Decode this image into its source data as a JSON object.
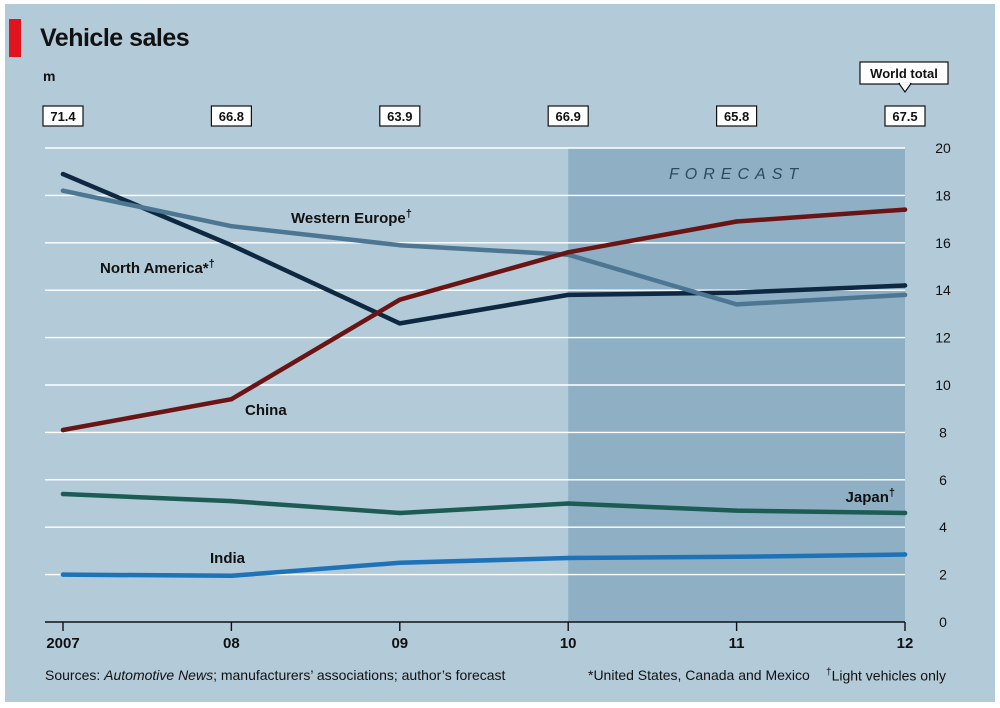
{
  "title": "Vehicle sales",
  "unit": "m",
  "colors": {
    "background": "#b3cad8",
    "forecast_band": "#8fb0c4",
    "north_america": "#0f2842",
    "western_europe": "#4c7692",
    "china": "#6b1414",
    "japan": "#1d5b55",
    "india": "#1e72b8",
    "accent": "#e0141e"
  },
  "forecast_label": "FORECAST",
  "world_total": {
    "label": "World total",
    "values": [
      "71.4",
      "66.8",
      "63.9",
      "66.9",
      "65.8",
      "67.5"
    ]
  },
  "footer": {
    "sources_prefix": "Sources: ",
    "sources_italic": "Automotive News",
    "sources_rest": "; manufacturers’ associations; author’s forecast",
    "note1": "*United States, Canada and Mexico",
    "note2_mark": "†",
    "note2_text": "Light vehicles only"
  },
  "chart_data": {
    "type": "line",
    "title": "Vehicle sales",
    "ylabel": "m",
    "x": [
      2007,
      2008,
      2009,
      2010,
      2011,
      2012
    ],
    "xtick_labels": [
      "2007",
      "08",
      "09",
      "10",
      "11",
      "12"
    ],
    "ylim": [
      0,
      20
    ],
    "yticks": [
      0,
      2,
      4,
      6,
      8,
      10,
      12,
      14,
      16,
      18,
      20
    ],
    "grid": true,
    "forecast_range": [
      2010,
      2012
    ],
    "series": [
      {
        "name": "North America*",
        "mark": "†",
        "color_key": "north_america",
        "values": [
          18.9,
          15.9,
          12.6,
          13.8,
          13.9,
          14.2
        ]
      },
      {
        "name": "Western Europe",
        "mark": "†",
        "color_key": "western_europe",
        "values": [
          18.2,
          16.7,
          15.9,
          15.5,
          13.4,
          13.8
        ]
      },
      {
        "name": "China",
        "mark": "",
        "color_key": "china",
        "values": [
          8.1,
          9.4,
          13.6,
          15.6,
          16.9,
          17.4
        ]
      },
      {
        "name": "Japan",
        "mark": "†",
        "color_key": "japan",
        "values": [
          5.4,
          5.1,
          4.6,
          5.0,
          4.7,
          4.6
        ]
      },
      {
        "name": "India",
        "mark": "",
        "color_key": "india",
        "values": [
          2.0,
          1.95,
          2.5,
          2.7,
          2.75,
          2.85
        ]
      }
    ]
  }
}
